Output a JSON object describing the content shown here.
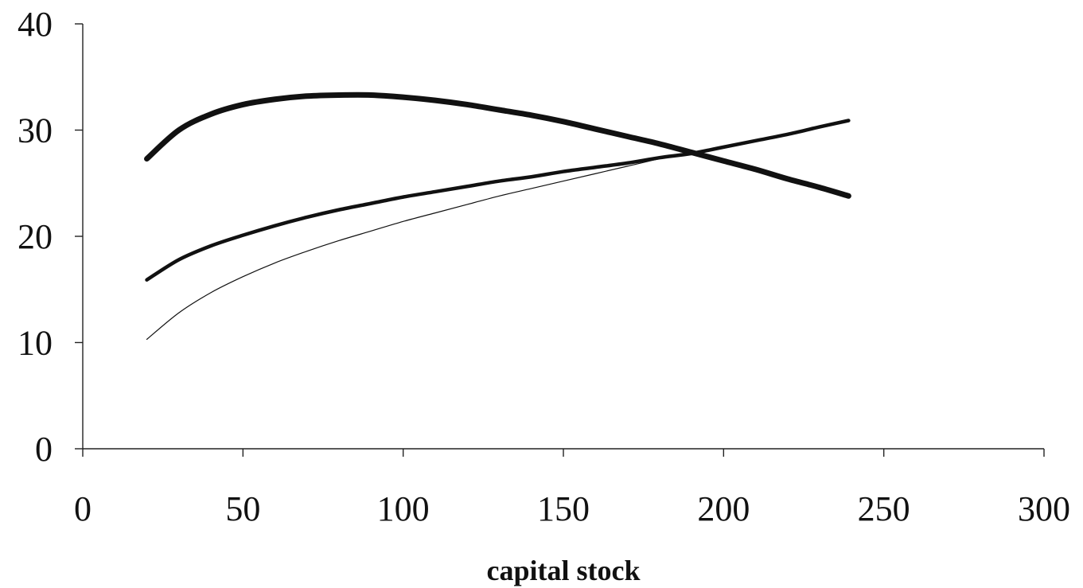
{
  "chart_data": {
    "type": "line",
    "title": "",
    "xlabel": "capital stock",
    "ylabel": "",
    "xlim": [
      0,
      300
    ],
    "ylim": [
      0,
      40
    ],
    "x_ticks": [
      "0",
      "50",
      "100",
      "150",
      "200",
      "250",
      "300"
    ],
    "y_ticks": [
      "0",
      "10",
      "20",
      "30",
      "40"
    ],
    "grid": false,
    "legend": "none",
    "x": [
      20,
      30,
      40,
      50,
      60,
      70,
      80,
      90,
      100,
      110,
      120,
      130,
      140,
      150,
      160,
      170,
      180,
      190,
      200,
      210,
      220,
      230,
      239
    ],
    "series": [
      {
        "style": "thick",
        "color": "#111111",
        "values": [
          27.3,
          30.0,
          31.5,
          32.4,
          32.9,
          33.2,
          33.3,
          33.3,
          33.1,
          32.8,
          32.4,
          31.9,
          31.4,
          30.8,
          30.1,
          29.4,
          28.7,
          27.9,
          27.1,
          26.3,
          25.4,
          24.6,
          23.8
        ]
      },
      {
        "style": "medium",
        "color": "#222222",
        "values": [
          15.9,
          17.8,
          19.1,
          20.1,
          21.0,
          21.8,
          22.5,
          23.1,
          23.7,
          24.2,
          24.7,
          25.2,
          25.6,
          26.1,
          26.5,
          26.9,
          27.4,
          27.8,
          28.4,
          29.0,
          29.6,
          30.3,
          30.9
        ]
      },
      {
        "style": "thin",
        "color": "#333333",
        "values": [
          10.3,
          12.8,
          14.7,
          16.2,
          17.5,
          18.6,
          19.6,
          20.5,
          21.4,
          22.2,
          23.0,
          23.8,
          24.5,
          25.2,
          25.9,
          26.6,
          27.3,
          27.9,
          28.4,
          29.0,
          29.6,
          30.3,
          30.9
        ]
      }
    ]
  }
}
